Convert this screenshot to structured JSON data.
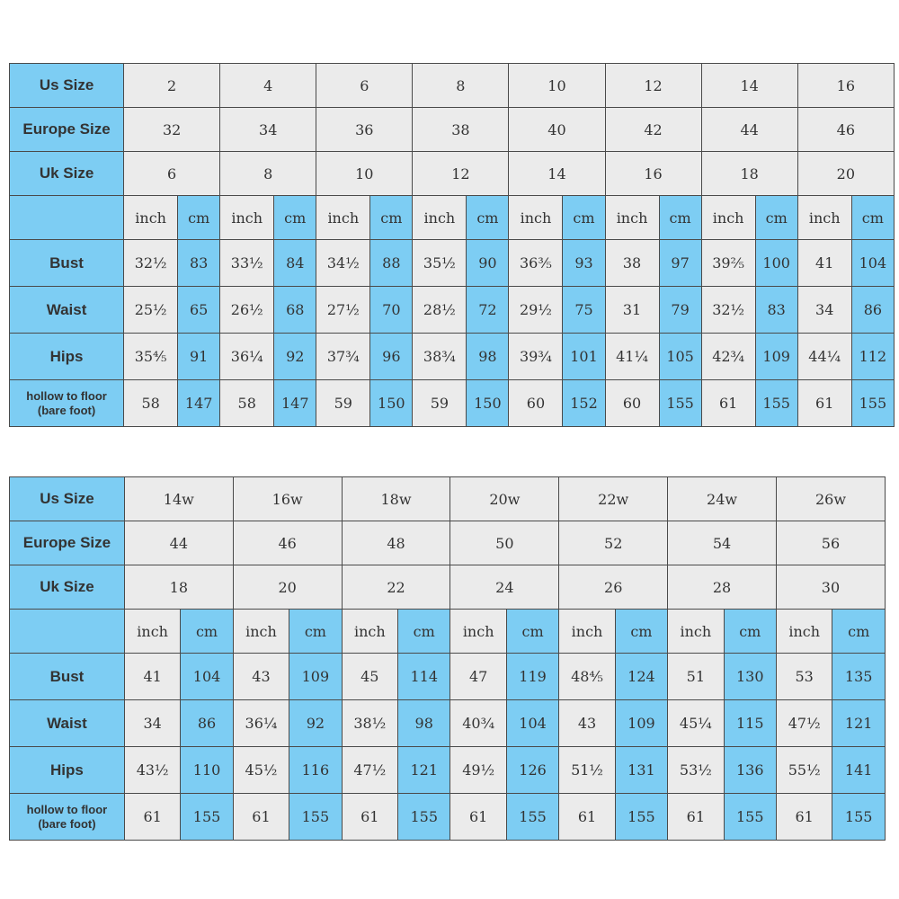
{
  "colors": {
    "label_bg": "#7dcdf3",
    "cm_bg": "#7dcdf3",
    "inch_bg": "#ebebeb",
    "border": "#4a4a4a"
  },
  "tables": [
    {
      "us_size_label": "Us Size",
      "europe_size_label": "Europe Size",
      "uk_size_label": "Uk Size",
      "unit_inch": "inch",
      "unit_cm": "cm",
      "bust_label": "Bust",
      "waist_label": "Waist",
      "hips_label": "Hips",
      "hollow_label_1": "hollow to floor",
      "hollow_label_2": "(bare foot)",
      "us": [
        "2",
        "4",
        "6",
        "8",
        "10",
        "12",
        "14",
        "16"
      ],
      "europe": [
        "32",
        "34",
        "36",
        "38",
        "40",
        "42",
        "44",
        "46"
      ],
      "uk": [
        "6",
        "8",
        "10",
        "12",
        "14",
        "16",
        "18",
        "20"
      ],
      "bust": [
        [
          "32½",
          "83"
        ],
        [
          "33½",
          "84"
        ],
        [
          "34½",
          "88"
        ],
        [
          "35½",
          "90"
        ],
        [
          "36⅗",
          "93"
        ],
        [
          "38",
          "97"
        ],
        [
          "39⅖",
          "100"
        ],
        [
          "41",
          "104"
        ]
      ],
      "waist": [
        [
          "25½",
          "65"
        ],
        [
          "26½",
          "68"
        ],
        [
          "27½",
          "70"
        ],
        [
          "28½",
          "72"
        ],
        [
          "29½",
          "75"
        ],
        [
          "31",
          "79"
        ],
        [
          "32½",
          "83"
        ],
        [
          "34",
          "86"
        ]
      ],
      "hips": [
        [
          "35⅘",
          "91"
        ],
        [
          "36¼",
          "92"
        ],
        [
          "37¾",
          "96"
        ],
        [
          "38¾",
          "98"
        ],
        [
          "39¾",
          "101"
        ],
        [
          "41¼",
          "105"
        ],
        [
          "42¾",
          "109"
        ],
        [
          "44¼",
          "112"
        ]
      ],
      "hollow": [
        [
          "58",
          "147"
        ],
        [
          "58",
          "147"
        ],
        [
          "59",
          "150"
        ],
        [
          "59",
          "150"
        ],
        [
          "60",
          "152"
        ],
        [
          "60",
          "155"
        ],
        [
          "61",
          "155"
        ],
        [
          "61",
          "155"
        ]
      ]
    },
    {
      "us_size_label": "Us Size",
      "europe_size_label": "Europe Size",
      "uk_size_label": "Uk Size",
      "unit_inch": "inch",
      "unit_cm": "cm",
      "bust_label": "Bust",
      "waist_label": "Waist",
      "hips_label": "Hips",
      "hollow_label_1": "hollow to floor",
      "hollow_label_2": "(bare foot)",
      "us": [
        "14w",
        "16w",
        "18w",
        "20w",
        "22w",
        "24w",
        "26w"
      ],
      "europe": [
        "44",
        "46",
        "48",
        "50",
        "52",
        "54",
        "56"
      ],
      "uk": [
        "18",
        "20",
        "22",
        "24",
        "26",
        "28",
        "30"
      ],
      "bust": [
        [
          "41",
          "104"
        ],
        [
          "43",
          "109"
        ],
        [
          "45",
          "114"
        ],
        [
          "47",
          "119"
        ],
        [
          "48⅘",
          "124"
        ],
        [
          "51",
          "130"
        ],
        [
          "53",
          "135"
        ]
      ],
      "waist": [
        [
          "34",
          "86"
        ],
        [
          "36¼",
          "92"
        ],
        [
          "38½",
          "98"
        ],
        [
          "40¾",
          "104"
        ],
        [
          "43",
          "109"
        ],
        [
          "45¼",
          "115"
        ],
        [
          "47½",
          "121"
        ]
      ],
      "hips": [
        [
          "43½",
          "110"
        ],
        [
          "45½",
          "116"
        ],
        [
          "47½",
          "121"
        ],
        [
          "49½",
          "126"
        ],
        [
          "51½",
          "131"
        ],
        [
          "53½",
          "136"
        ],
        [
          "55½",
          "141"
        ]
      ],
      "hollow": [
        [
          "61",
          "155"
        ],
        [
          "61",
          "155"
        ],
        [
          "61",
          "155"
        ],
        [
          "61",
          "155"
        ],
        [
          "61",
          "155"
        ],
        [
          "61",
          "155"
        ],
        [
          "61",
          "155"
        ]
      ]
    }
  ]
}
